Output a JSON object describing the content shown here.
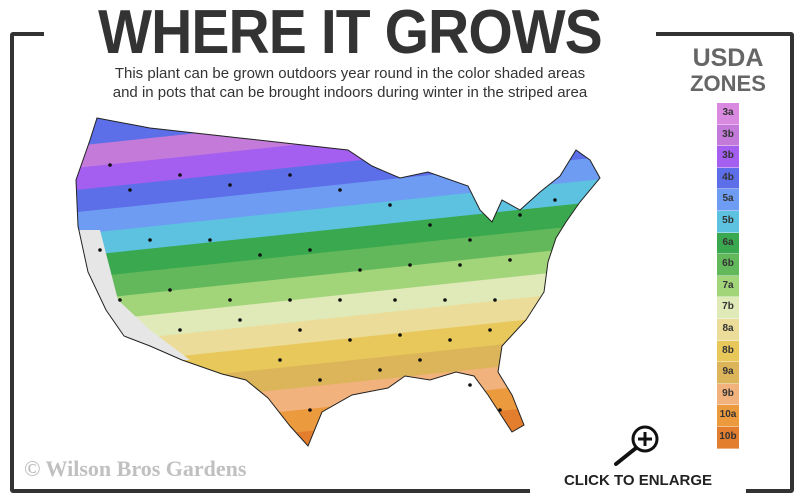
{
  "header": {
    "title": "WHERE IT GROWS",
    "subtitle_line1": "This plant can be grown outdoors year round in the color shaded areas",
    "subtitle_line2": "and in pots that can be brought indoors during winter in the striped area"
  },
  "legend": {
    "title_line1": "USDA",
    "title_line2": "ZONES",
    "zones": [
      {
        "label": "3a",
        "color": "#d98ae0"
      },
      {
        "label": "3b",
        "color": "#c47ad8"
      },
      {
        "label": "3b",
        "color": "#a45ef0"
      },
      {
        "label": "4b",
        "color": "#5c6ee8"
      },
      {
        "label": "5a",
        "color": "#6e9cf2"
      },
      {
        "label": "5b",
        "color": "#5cc2e0"
      },
      {
        "label": "6a",
        "color": "#3aa84e"
      },
      {
        "label": "6b",
        "color": "#62b85a"
      },
      {
        "label": "7a",
        "color": "#a2d47a"
      },
      {
        "label": "7b",
        "color": "#dfeab8"
      },
      {
        "label": "8a",
        "color": "#ecdc9a"
      },
      {
        "label": "8b",
        "color": "#e8c85a"
      },
      {
        "label": "9a",
        "color": "#dcb45a"
      },
      {
        "label": "9b",
        "color": "#f2b27e"
      },
      {
        "label": "10a",
        "color": "#ec9a3e"
      },
      {
        "label": "10b",
        "color": "#e27e2e"
      }
    ]
  },
  "footer": {
    "copyright": "© Wilson Bros Gardens",
    "enlarge_label": "CLICK TO ENLARGE",
    "enlarge_icon": "zoom-in-magnifier-icon"
  }
}
